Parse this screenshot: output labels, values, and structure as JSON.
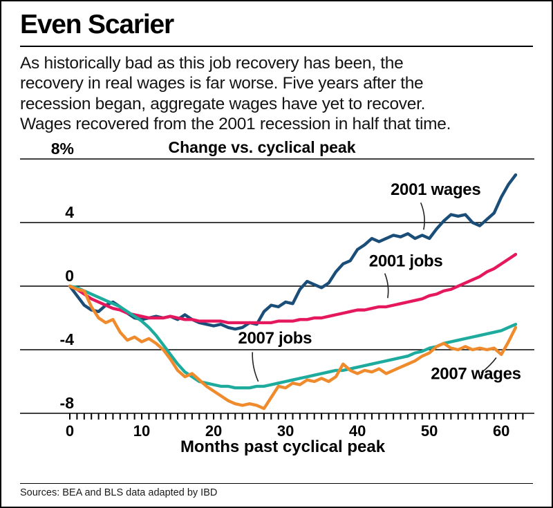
{
  "header": {
    "title": "Even Scarier",
    "description_lines": [
      "As historically bad as this job recovery has been, the",
      "recovery in real wages is far worse. Five years after the",
      "recession began, aggregate wages have yet to recover.",
      "Wages recovered from the 2001 recession in half that time."
    ]
  },
  "footer": {
    "source": "Sources: BEA and BLS data adapted by IBD"
  },
  "chart_data": {
    "type": "line",
    "title": "Change vs. cyclical peak",
    "xlabel": "Months past cyclical peak",
    "ylabel": "Change vs. cyclical peak (%)",
    "xlim": [
      0,
      63
    ],
    "ylim": [
      -8,
      8
    ],
    "grid": "horizontal",
    "legend": "inline-annotations",
    "yticks": [
      8,
      4,
      0,
      -4,
      -8
    ],
    "ytick_labels": [
      "8%",
      "4",
      "0",
      "-4",
      "-8"
    ],
    "xticks": [
      0,
      10,
      20,
      30,
      40,
      50,
      60
    ],
    "x_minor_tick_step": 1,
    "x": [
      0,
      1,
      2,
      3,
      4,
      5,
      6,
      7,
      8,
      9,
      10,
      11,
      12,
      13,
      14,
      15,
      16,
      17,
      18,
      19,
      20,
      21,
      22,
      23,
      24,
      25,
      26,
      27,
      28,
      29,
      30,
      31,
      32,
      33,
      34,
      35,
      36,
      37,
      38,
      39,
      40,
      41,
      42,
      43,
      44,
      45,
      46,
      47,
      48,
      49,
      50,
      51,
      52,
      53,
      54,
      55,
      56,
      57,
      58,
      59,
      60,
      61,
      62
    ],
    "series": [
      {
        "name": "2001 wages",
        "color": "#1a4e79",
        "values": [
          0,
          -0.6,
          -1.2,
          -1.5,
          -1.6,
          -1.2,
          -1.0,
          -1.3,
          -1.7,
          -2.0,
          -2.1,
          -2.0,
          -1.9,
          -2.0,
          -1.9,
          -2.1,
          -1.8,
          -2.1,
          -2.3,
          -2.4,
          -2.5,
          -2.4,
          -2.6,
          -2.7,
          -2.6,
          -2.3,
          -2.4,
          -1.6,
          -1.2,
          -1.3,
          -1.0,
          -1.1,
          -0.2,
          0.3,
          0.1,
          -0.1,
          0.2,
          0.9,
          1.4,
          1.6,
          2.3,
          2.6,
          3.0,
          2.8,
          3.0,
          3.2,
          3.1,
          3.3,
          3.0,
          3.2,
          3.0,
          3.6,
          4.1,
          4.5,
          4.4,
          4.5,
          4.0,
          3.8,
          4.2,
          4.6,
          5.6,
          6.4,
          7.0
        ]
      },
      {
        "name": "2001 jobs",
        "color": "#e5185e",
        "values": [
          0,
          -0.2,
          -0.5,
          -0.8,
          -1.0,
          -1.2,
          -1.4,
          -1.5,
          -1.7,
          -1.8,
          -1.9,
          -2.0,
          -2.0,
          -2.0,
          -1.9,
          -2.0,
          -2.1,
          -2.1,
          -2.2,
          -2.2,
          -2.2,
          -2.2,
          -2.3,
          -2.3,
          -2.3,
          -2.3,
          -2.3,
          -2.3,
          -2.3,
          -2.2,
          -2.2,
          -2.2,
          -2.1,
          -2.1,
          -2.0,
          -2.0,
          -1.9,
          -1.8,
          -1.7,
          -1.6,
          -1.5,
          -1.5,
          -1.4,
          -1.3,
          -1.3,
          -1.2,
          -1.1,
          -1.0,
          -0.9,
          -0.8,
          -0.6,
          -0.5,
          -0.3,
          -0.2,
          0.0,
          0.2,
          0.4,
          0.6,
          0.9,
          1.1,
          1.4,
          1.7,
          2.0
        ]
      },
      {
        "name": "2007 jobs",
        "color": "#1cab9c",
        "values": [
          0,
          -0.1,
          -0.3,
          -0.5,
          -0.7,
          -0.9,
          -1.1,
          -1.3,
          -1.6,
          -1.9,
          -2.2,
          -2.6,
          -3.1,
          -3.7,
          -4.3,
          -4.9,
          -5.4,
          -5.7,
          -6.0,
          -6.1,
          -6.2,
          -6.3,
          -6.3,
          -6.4,
          -6.4,
          -6.4,
          -6.3,
          -6.3,
          -6.2,
          -6.1,
          -6.0,
          -5.9,
          -5.8,
          -5.7,
          -5.6,
          -5.5,
          -5.4,
          -5.3,
          -5.3,
          -5.2,
          -5.1,
          -5.0,
          -4.9,
          -4.8,
          -4.7,
          -4.6,
          -4.5,
          -4.4,
          -4.2,
          -4.1,
          -3.9,
          -3.8,
          -3.6,
          -3.5,
          -3.4,
          -3.3,
          -3.2,
          -3.1,
          -3.0,
          -2.9,
          -2.8,
          -2.6,
          -2.4
        ]
      },
      {
        "name": "2007 wages",
        "color": "#f08b2d",
        "values": [
          0,
          -0.2,
          -0.3,
          -1.3,
          -2.0,
          -2.3,
          -2.1,
          -2.9,
          -3.4,
          -3.2,
          -3.5,
          -3.3,
          -3.6,
          -4.0,
          -4.6,
          -5.3,
          -5.7,
          -5.5,
          -5.9,
          -6.3,
          -6.6,
          -6.9,
          -7.2,
          -7.4,
          -7.5,
          -7.4,
          -7.5,
          -7.7,
          -7.0,
          -6.3,
          -6.4,
          -6.1,
          -6.2,
          -5.9,
          -6.0,
          -5.8,
          -6.0,
          -5.7,
          -4.9,
          -5.3,
          -5.5,
          -5.3,
          -5.4,
          -5.2,
          -5.5,
          -5.3,
          -5.1,
          -4.9,
          -4.7,
          -4.4,
          -4.2,
          -3.8,
          -3.6,
          -3.9,
          -4.0,
          -3.8,
          -4.0,
          -3.9,
          -4.0,
          -3.9,
          -4.3,
          -3.5,
          -2.6
        ]
      }
    ],
    "annotations": [
      {
        "label": "2001 wages",
        "color": "#1a4e79",
        "text_at": {
          "month": 44.6,
          "value": 5.75
        },
        "leader_from": {
          "month": 48.8,
          "value": 5.25
        },
        "arrow_to": {
          "month": 49.2,
          "value": 3.55
        },
        "bend": 6
      },
      {
        "label": "2001 jobs",
        "color": "#e5185e",
        "text_at": {
          "month": 41.6,
          "value": 1.25
        },
        "leader_from": {
          "month": 43.8,
          "value": 0.8
        },
        "arrow_to": {
          "month": 44.2,
          "value": -0.75
        },
        "bend": 5
      },
      {
        "label": "2007 jobs",
        "color": "#1cab9c",
        "text_at": {
          "month": 23.4,
          "value": -3.6
        },
        "leader_from": {
          "month": 25.4,
          "value": -4.15
        },
        "arrow_to": {
          "month": 26.2,
          "value": -6.0
        },
        "bend": -5
      },
      {
        "label": "2007 wages",
        "color": "#f08b2d",
        "text_at": {
          "month": 50.2,
          "value": -5.85
        },
        "leader_from": {
          "month": 57.2,
          "value": -5.45
        },
        "arrow_to": {
          "month": 59.3,
          "value": -4.5
        },
        "bend": 3
      }
    ]
  }
}
